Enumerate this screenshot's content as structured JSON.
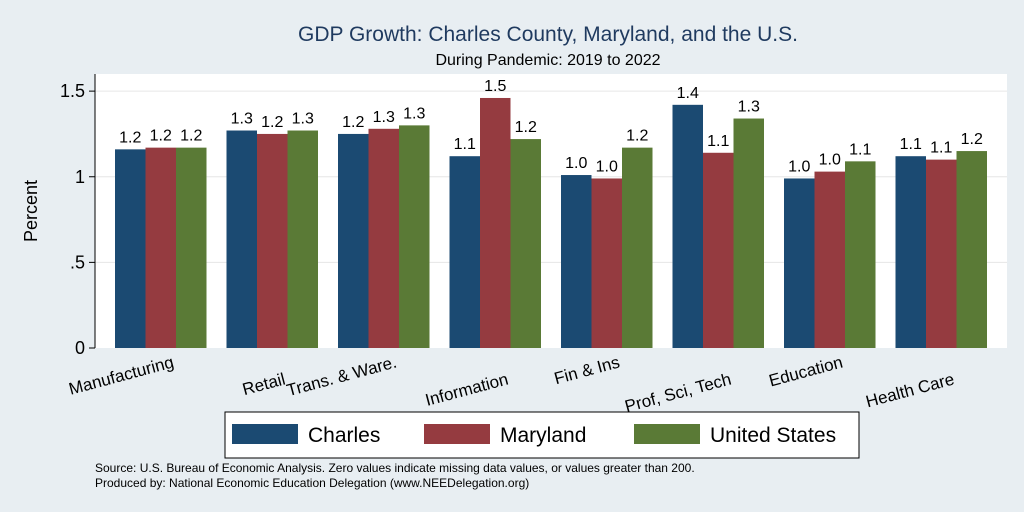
{
  "chart_data": {
    "type": "bar",
    "title": "GDP Growth: Charles County, Maryland, and the U.S.",
    "subtitle": "During Pandemic: 2019 to 2022",
    "ylabel": "Percent",
    "xlabel": "",
    "ylim": [
      0,
      1.6
    ],
    "yticks": [
      {
        "value": 0,
        "label": "0"
      },
      {
        "value": 0.5,
        "label": ".5"
      },
      {
        "value": 1,
        "label": "1"
      },
      {
        "value": 1.5,
        "label": "1.5"
      }
    ],
    "grid": true,
    "legend_position": "bottom",
    "categories": [
      "Manufacturing",
      "Retail",
      "Trans. & Ware.",
      "Information",
      "Fin & Ins",
      "Prof, Sci, Tech",
      "Education",
      "Health Care"
    ],
    "series": [
      {
        "name": "Charles",
        "color": "#1b4a72",
        "values": [
          1.16,
          1.27,
          1.25,
          1.12,
          1.01,
          1.42,
          0.99,
          1.12
        ],
        "labels": [
          "1.2",
          "1.3",
          "1.2",
          "1.1",
          "1.0",
          "1.4",
          "1.0",
          "1.1"
        ]
      },
      {
        "name": "Maryland",
        "color": "#953b40",
        "values": [
          1.17,
          1.25,
          1.28,
          1.46,
          0.99,
          1.14,
          1.03,
          1.1
        ],
        "labels": [
          "1.2",
          "1.2",
          "1.3",
          "1.5",
          "1.0",
          "1.1",
          "1.0",
          "1.1"
        ]
      },
      {
        "name": "United States",
        "color": "#5a7a36",
        "values": [
          1.17,
          1.27,
          1.3,
          1.22,
          1.17,
          1.34,
          1.09,
          1.15
        ],
        "labels": [
          "1.2",
          "1.3",
          "1.3",
          "1.2",
          "1.2",
          "1.3",
          "1.1",
          "1.2"
        ]
      }
    ]
  },
  "source_note": "Source: U.S. Bureau of Economic Analysis. Zero values indicate missing data values, or values greater than 200.",
  "produced_note": "Produced by: National Economic Education Delegation (www.NEEDelegation.org)"
}
